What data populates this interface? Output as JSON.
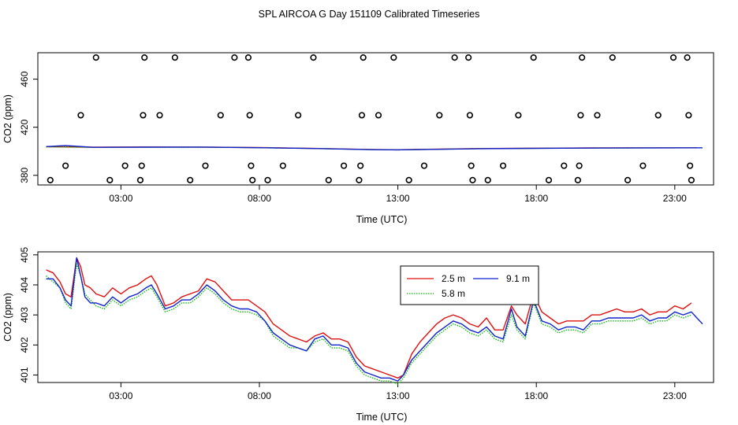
{
  "title": "SPL AIRCOA G  Day 151109  Calibrated Timeseries",
  "colors": {
    "s1": "#dd1111",
    "s2": "#11bb11",
    "s3": "#1122cc",
    "axis": "#000000"
  },
  "chart_data": [
    {
      "type": "scatter",
      "xlabel": "Time (UTC)",
      "ylabel": "CO2 (ppm)",
      "xlim": [
        0,
        24.4
      ],
      "ylim": [
        372,
        482
      ],
      "xticks": [
        3,
        8,
        13,
        18,
        23
      ],
      "xtick_labels": [
        "03:00",
        "08:00",
        "13:00",
        "18:00",
        "23:00"
      ],
      "yticks": [
        380,
        420,
        460
      ],
      "ytick_labels": [
        "380",
        "420",
        "460"
      ],
      "points": [
        [
          0.45,
          376
        ],
        [
          1.0,
          388
        ],
        [
          1.55,
          430
        ],
        [
          2.1,
          478
        ],
        [
          2.6,
          376
        ],
        [
          3.15,
          388
        ],
        [
          3.7,
          376
        ],
        [
          3.75,
          388
        ],
        [
          3.8,
          430
        ],
        [
          3.85,
          478
        ],
        [
          4.4,
          430
        ],
        [
          4.95,
          478
        ],
        [
          5.5,
          376
        ],
        [
          6.05,
          388
        ],
        [
          6.6,
          430
        ],
        [
          7.1,
          478
        ],
        [
          7.6,
          478
        ],
        [
          7.65,
          430
        ],
        [
          7.7,
          388
        ],
        [
          7.75,
          376
        ],
        [
          8.3,
          376
        ],
        [
          8.85,
          388
        ],
        [
          9.4,
          430
        ],
        [
          9.95,
          478
        ],
        [
          10.5,
          376
        ],
        [
          11.05,
          388
        ],
        [
          11.6,
          376
        ],
        [
          11.65,
          388
        ],
        [
          11.7,
          430
        ],
        [
          11.75,
          478
        ],
        [
          12.3,
          430
        ],
        [
          12.85,
          478
        ],
        [
          13.4,
          376
        ],
        [
          13.95,
          388
        ],
        [
          14.5,
          430
        ],
        [
          15.05,
          478
        ],
        [
          15.55,
          478
        ],
        [
          15.6,
          430
        ],
        [
          15.65,
          388
        ],
        [
          15.7,
          376
        ],
        [
          16.25,
          376
        ],
        [
          16.8,
          388
        ],
        [
          17.35,
          430
        ],
        [
          17.9,
          478
        ],
        [
          18.45,
          376
        ],
        [
          19.0,
          388
        ],
        [
          19.5,
          376
        ],
        [
          19.55,
          388
        ],
        [
          19.6,
          430
        ],
        [
          19.65,
          478
        ],
        [
          20.2,
          430
        ],
        [
          20.75,
          478
        ],
        [
          21.3,
          376
        ],
        [
          21.85,
          388
        ],
        [
          22.4,
          430
        ],
        [
          22.95,
          478
        ],
        [
          23.45,
          478
        ],
        [
          23.5,
          430
        ],
        [
          23.55,
          388
        ],
        [
          23.6,
          376
        ]
      ],
      "series": [
        {
          "name": "2.5 m",
          "color": "#dd1111",
          "x": [
            0.3,
            2,
            4,
            6,
            8,
            10,
            12,
            13,
            16,
            20,
            23.8
          ],
          "y": [
            403.8,
            403.4,
            403.6,
            403.5,
            403.1,
            402.4,
            401.5,
            401.3,
            402.3,
            402.8,
            403.0
          ]
        },
        {
          "name": "5.8 m",
          "color": "#11bb11",
          "x": [
            0.3,
            2,
            4,
            6,
            8,
            10,
            12,
            13,
            16,
            20,
            23.8
          ],
          "y": [
            403.7,
            403.3,
            403.4,
            403.4,
            403.0,
            402.3,
            401.4,
            401.2,
            402.2,
            402.7,
            402.9
          ]
        },
        {
          "name": "9.1 m",
          "color": "#1122cc",
          "x": [
            0.3,
            1.0,
            2,
            4,
            6,
            8,
            10,
            12,
            13,
            16,
            20,
            24.0
          ],
          "y": [
            403.9,
            404.8,
            403.3,
            403.4,
            403.5,
            403.0,
            402.3,
            401.4,
            401.2,
            402.2,
            402.7,
            402.9
          ]
        }
      ]
    },
    {
      "type": "line",
      "xlabel": "Time (UTC)",
      "ylabel": "CO2 (ppm)",
      "xlim": [
        0,
        24.4
      ],
      "ylim": [
        400.75,
        405.1
      ],
      "xticks": [
        3,
        8,
        13,
        18,
        23
      ],
      "xtick_labels": [
        "03:00",
        "08:00",
        "13:00",
        "18:00",
        "23:00"
      ],
      "yticks": [
        401,
        402,
        403,
        404,
        405
      ],
      "ytick_labels": [
        "401",
        "402",
        "403",
        "404",
        "405"
      ],
      "legend": {
        "position": "top-center",
        "entries": [
          "2.5 m",
          "5.8 m",
          "9.1 m"
        ]
      },
      "series": [
        {
          "name": "2.5 m",
          "color": "#dd1111",
          "x": [
            0.3,
            0.55,
            0.8,
            1.0,
            1.2,
            1.4,
            1.55,
            1.7,
            1.9,
            2.1,
            2.4,
            2.7,
            3.0,
            3.3,
            3.6,
            3.9,
            4.1,
            4.3,
            4.6,
            4.9,
            5.2,
            5.5,
            5.8,
            6.1,
            6.4,
            6.7,
            7.0,
            7.3,
            7.6,
            7.9,
            8.2,
            8.5,
            8.8,
            9.1,
            9.4,
            9.7,
            10.0,
            10.3,
            10.6,
            10.9,
            11.2,
            11.5,
            11.8,
            12.1,
            12.4,
            12.7,
            13.0,
            13.2,
            13.5,
            13.8,
            14.1,
            14.4,
            14.7,
            15.0,
            15.3,
            15.6,
            15.9,
            16.2,
            16.5,
            16.8,
            17.1,
            17.3,
            17.6,
            17.9,
            18.2,
            18.5,
            18.8,
            19.1,
            19.4,
            19.7,
            20.0,
            20.3,
            20.6,
            20.9,
            21.2,
            21.5,
            21.8,
            22.1,
            22.4,
            22.7,
            23.0,
            23.3,
            23.6
          ],
          "y": [
            404.5,
            404.4,
            404.1,
            403.7,
            403.6,
            404.9,
            404.6,
            404.0,
            403.9,
            403.7,
            403.6,
            403.9,
            403.7,
            403.9,
            404.0,
            404.2,
            404.3,
            404.0,
            403.3,
            403.4,
            403.6,
            403.7,
            403.8,
            404.2,
            404.1,
            403.8,
            403.5,
            403.5,
            403.5,
            403.3,
            403.1,
            402.7,
            402.5,
            402.3,
            402.2,
            402.1,
            402.3,
            402.4,
            402.2,
            402.2,
            402.1,
            401.6,
            401.3,
            401.2,
            401.1,
            401.0,
            400.9,
            401.0,
            401.7,
            402.1,
            402.4,
            402.7,
            402.9,
            403.0,
            402.9,
            402.7,
            402.6,
            402.9,
            402.5,
            402.5,
            403.3,
            403.0,
            402.7,
            403.7,
            403.1,
            402.9,
            402.7,
            402.8,
            402.8,
            402.8,
            403.0,
            403.0,
            403.1,
            403.2,
            403.1,
            403.1,
            403.2,
            403.0,
            403.1,
            403.1,
            403.3,
            403.2,
            403.4
          ]
        },
        {
          "name": "5.8 m",
          "color": "#11bb11",
          "x": [
            0.3,
            0.55,
            0.8,
            1.0,
            1.2,
            1.4,
            1.55,
            1.7,
            1.9,
            2.1,
            2.4,
            2.7,
            3.0,
            3.3,
            3.6,
            3.9,
            4.1,
            4.3,
            4.6,
            4.9,
            5.2,
            5.5,
            5.8,
            6.1,
            6.4,
            6.7,
            7.0,
            7.3,
            7.6,
            7.9,
            8.2,
            8.5,
            8.8,
            9.1,
            9.4,
            9.7,
            10.0,
            10.3,
            10.6,
            10.9,
            11.2,
            11.5,
            11.8,
            12.1,
            12.4,
            12.7,
            13.0,
            13.2,
            13.5,
            13.8,
            14.1,
            14.4,
            14.7,
            15.0,
            15.3,
            15.6,
            15.9,
            16.2,
            16.5,
            16.8,
            17.1,
            17.3,
            17.6,
            17.9,
            18.2,
            18.5,
            18.8,
            19.1,
            19.4,
            19.7,
            20.0,
            20.3,
            20.6,
            20.9,
            21.2,
            21.5,
            21.8,
            22.1,
            22.4,
            22.7,
            23.0,
            23.3,
            23.6
          ],
          "y": [
            404.3,
            404.1,
            403.9,
            403.4,
            403.2,
            404.7,
            404.3,
            403.7,
            403.5,
            403.3,
            403.2,
            403.5,
            403.3,
            403.5,
            403.6,
            403.8,
            403.9,
            403.6,
            403.1,
            403.2,
            403.4,
            403.4,
            403.6,
            403.9,
            403.7,
            403.4,
            403.2,
            403.1,
            403.1,
            403.0,
            402.8,
            402.3,
            402.1,
            401.9,
            401.9,
            401.8,
            402.1,
            402.2,
            401.9,
            401.9,
            401.8,
            401.3,
            401.0,
            400.9,
            400.8,
            400.8,
            400.7,
            400.9,
            401.4,
            401.7,
            402.0,
            402.3,
            402.5,
            402.7,
            402.6,
            402.4,
            402.3,
            402.5,
            402.2,
            402.1,
            403.0,
            402.5,
            402.2,
            403.4,
            402.7,
            402.6,
            402.4,
            402.5,
            402.5,
            402.4,
            402.7,
            402.7,
            402.8,
            402.8,
            402.8,
            402.8,
            402.9,
            402.7,
            402.8,
            402.8,
            403.0,
            402.9,
            403.0
          ]
        },
        {
          "name": "9.1 m",
          "color": "#1122cc",
          "x": [
            0.3,
            0.55,
            0.8,
            1.0,
            1.2,
            1.4,
            1.55,
            1.7,
            1.9,
            2.1,
            2.4,
            2.7,
            3.0,
            3.3,
            3.6,
            3.9,
            4.1,
            4.3,
            4.6,
            4.9,
            5.2,
            5.5,
            5.8,
            6.1,
            6.4,
            6.7,
            7.0,
            7.3,
            7.6,
            7.9,
            8.2,
            8.5,
            8.8,
            9.1,
            9.4,
            9.7,
            10.0,
            10.3,
            10.6,
            10.9,
            11.2,
            11.5,
            11.8,
            12.1,
            12.4,
            12.7,
            13.0,
            13.2,
            13.5,
            13.8,
            14.1,
            14.4,
            14.7,
            15.0,
            15.3,
            15.6,
            15.9,
            16.2,
            16.5,
            16.8,
            17.1,
            17.3,
            17.6,
            17.9,
            18.2,
            18.5,
            18.8,
            19.1,
            19.4,
            19.7,
            20.0,
            20.3,
            20.6,
            20.9,
            21.2,
            21.5,
            21.8,
            22.1,
            22.4,
            22.7,
            23.0,
            23.3,
            23.6,
            23.8,
            24.0
          ],
          "y": [
            404.2,
            404.2,
            403.9,
            403.5,
            403.3,
            404.9,
            404.3,
            403.6,
            403.4,
            403.4,
            403.3,
            403.6,
            403.4,
            403.6,
            403.7,
            403.9,
            404.0,
            403.7,
            403.2,
            403.3,
            403.5,
            403.5,
            403.7,
            404.0,
            403.8,
            403.5,
            403.3,
            403.2,
            403.2,
            403.1,
            402.8,
            402.4,
            402.2,
            402.0,
            401.9,
            401.8,
            402.2,
            402.3,
            402.0,
            402.0,
            401.9,
            401.4,
            401.1,
            401.0,
            400.9,
            400.9,
            400.8,
            401.0,
            401.5,
            401.8,
            402.1,
            402.4,
            402.6,
            402.8,
            402.7,
            402.5,
            402.4,
            402.6,
            402.3,
            402.2,
            403.2,
            402.6,
            402.3,
            403.5,
            402.8,
            402.7,
            402.5,
            402.6,
            402.6,
            402.5,
            402.8,
            402.8,
            402.9,
            402.9,
            402.9,
            402.9,
            403.0,
            402.8,
            402.9,
            402.9,
            403.1,
            403.0,
            403.1,
            402.9,
            402.7
          ]
        }
      ]
    }
  ]
}
